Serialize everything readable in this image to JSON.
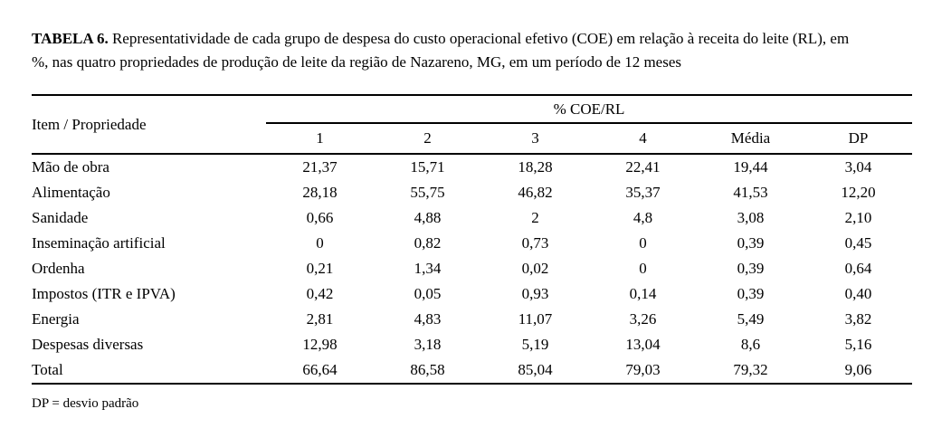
{
  "caption": {
    "label": "TABELA 6.",
    "line1": "Representatividade de cada grupo de despesa do custo operacional efetivo (COE) em relação à receita do leite (RL), em",
    "line2": "%, nas quatro propriedades de produção de leite da região de Nazareno, MG, em um período de 12 meses"
  },
  "table": {
    "row_header": "Item / Propriedade",
    "group_header": "% COE/RL",
    "columns": [
      "1",
      "2",
      "3",
      "4",
      "Média",
      "DP"
    ],
    "rows": [
      {
        "item": "Mão de obra",
        "values": [
          "21,37",
          "15,71",
          "18,28",
          "22,41",
          "19,44",
          "3,04"
        ]
      },
      {
        "item": "Alimentação",
        "values": [
          "28,18",
          "55,75",
          "46,82",
          "35,37",
          "41,53",
          "12,20"
        ]
      },
      {
        "item": "Sanidade",
        "values": [
          "0,66",
          "4,88",
          "2",
          "4,8",
          "3,08",
          "2,10"
        ]
      },
      {
        "item": "Inseminação artificial",
        "values": [
          "0",
          "0,82",
          "0,73",
          "0",
          "0,39",
          "0,45"
        ]
      },
      {
        "item": "Ordenha",
        "values": [
          "0,21",
          "1,34",
          "0,02",
          "0",
          "0,39",
          "0,64"
        ]
      },
      {
        "item": "Impostos (ITR e IPVA)",
        "values": [
          "0,42",
          "0,05",
          "0,93",
          "0,14",
          "0,39",
          "0,40"
        ]
      },
      {
        "item": "Energia",
        "values": [
          "2,81",
          "4,83",
          "11,07",
          "3,26",
          "5,49",
          "3,82"
        ]
      },
      {
        "item": "Despesas diversas",
        "values": [
          "12,98",
          "3,18",
          "5,19",
          "13,04",
          "8,6",
          "5,16"
        ]
      },
      {
        "item": "Total",
        "values": [
          "66,64",
          "86,58",
          "85,04",
          "79,03",
          "79,32",
          "9,06"
        ]
      }
    ],
    "footnote": "DP = desvio padrão",
    "text_color": "#000000",
    "background_color": "#ffffff"
  }
}
